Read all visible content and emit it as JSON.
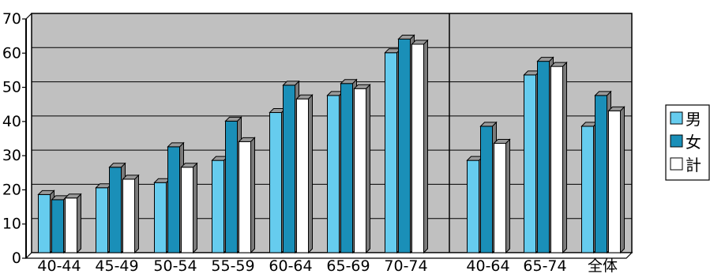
{
  "chart_data": {
    "type": "bar",
    "categories": [
      "40-44",
      "45-49",
      "50-54",
      "55-59",
      "60-64",
      "65-69",
      "70-74",
      "40-64",
      "65-74",
      "全体"
    ],
    "series": [
      {
        "name": "男",
        "values": [
          17,
          19,
          20.5,
          27,
          41,
          46,
          58.5,
          27,
          52,
          37
        ]
      },
      {
        "name": "女",
        "values": [
          15.5,
          25,
          31,
          38.5,
          49,
          49.5,
          62.5,
          37,
          56,
          46
        ]
      },
      {
        "name": "計",
        "values": [
          16,
          21.5,
          25,
          32.5,
          45,
          48,
          61,
          32,
          54.5,
          41.5
        ]
      }
    ],
    "ylim": [
      0,
      70
    ],
    "yticks": [
      0,
      10,
      20,
      30,
      40,
      50,
      60,
      70
    ],
    "grid": true,
    "legend_position": "right",
    "colors": {
      "男": "#66ccee",
      "女": "#1a8fb8",
      "計": "#ffffff",
      "plot_background": "#c0c0c0",
      "bar_side": "#7a7a7a",
      "bar_top": "#9a9a9a"
    }
  }
}
